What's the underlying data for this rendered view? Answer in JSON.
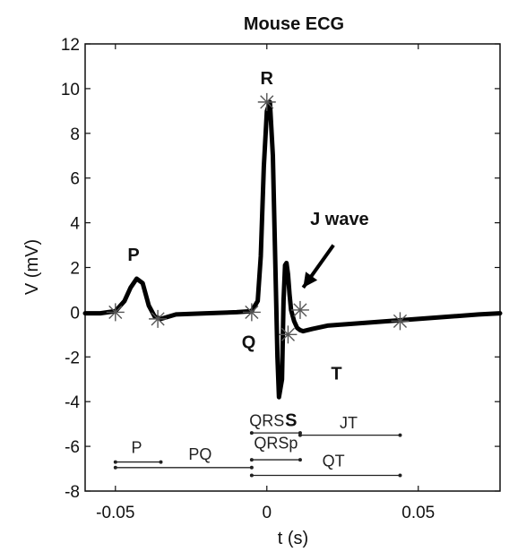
{
  "chart_data": {
    "type": "line",
    "title": "Mouse ECG",
    "xlabel": "t (s)",
    "ylabel": "V (mV)",
    "xlim": [
      -0.06,
      0.077
    ],
    "ylim": [
      -8,
      12
    ],
    "xticks": [
      -0.05,
      0,
      0.05
    ],
    "xtick_labels": [
      "-0.05",
      "0",
      "0.05"
    ],
    "yticks": [
      -8,
      -6,
      -4,
      -2,
      0,
      2,
      4,
      6,
      8,
      10,
      12
    ],
    "ytick_labels": [
      "-8",
      "-6",
      "-4",
      "-2",
      "0",
      "2",
      "4",
      "6",
      "8",
      "10",
      "12"
    ],
    "grid": false,
    "series": [
      {
        "x": [
          -0.06,
          -0.055,
          -0.05,
          -0.047,
          -0.045,
          -0.043,
          -0.041,
          -0.039,
          -0.037,
          -0.035,
          -0.03,
          -0.02,
          -0.01,
          -0.005,
          -0.003,
          -0.002,
          -0.001,
          0,
          0.001,
          0.002,
          0.003,
          0.0035,
          0.004,
          0.005,
          0.0055,
          0.006,
          0.0065,
          0.007,
          0.0075,
          0.008,
          0.009,
          0.01,
          0.011,
          0.012,
          0.015,
          0.02,
          0.025,
          0.03,
          0.035,
          0.04,
          0.045,
          0.05,
          0.06,
          0.07,
          0.077
        ],
        "y": [
          -0.05,
          -0.05,
          0.05,
          0.5,
          1.1,
          1.5,
          1.3,
          0.3,
          -0.2,
          -0.3,
          -0.1,
          -0.05,
          0.0,
          0.05,
          0.5,
          2.5,
          6.5,
          9.0,
          9.4,
          7.0,
          1.0,
          -2.0,
          -3.8,
          -3.0,
          0.5,
          2.1,
          2.2,
          1.7,
          0.8,
          0.1,
          -0.4,
          -0.7,
          -0.8,
          -0.85,
          -0.75,
          -0.6,
          -0.55,
          -0.5,
          -0.45,
          -0.4,
          -0.35,
          -0.3,
          -0.2,
          -0.1,
          -0.05
        ]
      }
    ],
    "markers": [
      {
        "x": -0.05,
        "y": 0.0
      },
      {
        "x": -0.036,
        "y": -0.3
      },
      {
        "x": -0.005,
        "y": 0.0
      },
      {
        "x": 0.0,
        "y": 9.4
      },
      {
        "x": 0.007,
        "y": -1.0
      },
      {
        "x": 0.011,
        "y": 0.1
      },
      {
        "x": 0.044,
        "y": -0.4
      }
    ],
    "wave_labels": [
      {
        "id": "P",
        "text": "P",
        "x": -0.044,
        "y": 2.3
      },
      {
        "id": "R",
        "text": "R",
        "x": 0.0,
        "y": 10.2
      },
      {
        "id": "Q",
        "text": "Q",
        "x": -0.006,
        "y": -1.6
      },
      {
        "id": "S",
        "text": "S",
        "x": 0.008,
        "y": -5.1
      },
      {
        "id": "T",
        "text": "T",
        "x": 0.023,
        "y": -3.0
      },
      {
        "id": "Jwave",
        "text": "J wave",
        "x": 0.024,
        "y": 3.9
      }
    ],
    "arrow": {
      "from": [
        0.022,
        3.0
      ],
      "to": [
        0.012,
        1.1
      ]
    },
    "intervals": [
      {
        "label": "P",
        "start": -0.05,
        "end": -0.035,
        "y": -6.7,
        "label_x": -0.043,
        "label_y": -6.3
      },
      {
        "label": "PQ",
        "start": -0.05,
        "end": -0.005,
        "y": -6.95,
        "label_x": -0.022,
        "label_y": -6.6
      },
      {
        "label": "QRS",
        "start": -0.005,
        "end": 0.011,
        "y": -5.4,
        "label_x": 0.0,
        "label_y": -5.1
      },
      {
        "label": "QRSp",
        "start": -0.005,
        "end": 0.011,
        "y": -6.6,
        "label_x": 0.003,
        "label_y": -6.1
      },
      {
        "label": "JT",
        "start": 0.011,
        "end": 0.044,
        "y": -5.5,
        "label_x": 0.027,
        "label_y": -5.2
      },
      {
        "label": "QT",
        "start": -0.005,
        "end": 0.044,
        "y": -7.3,
        "label_x": 0.022,
        "label_y": -6.9
      }
    ]
  }
}
